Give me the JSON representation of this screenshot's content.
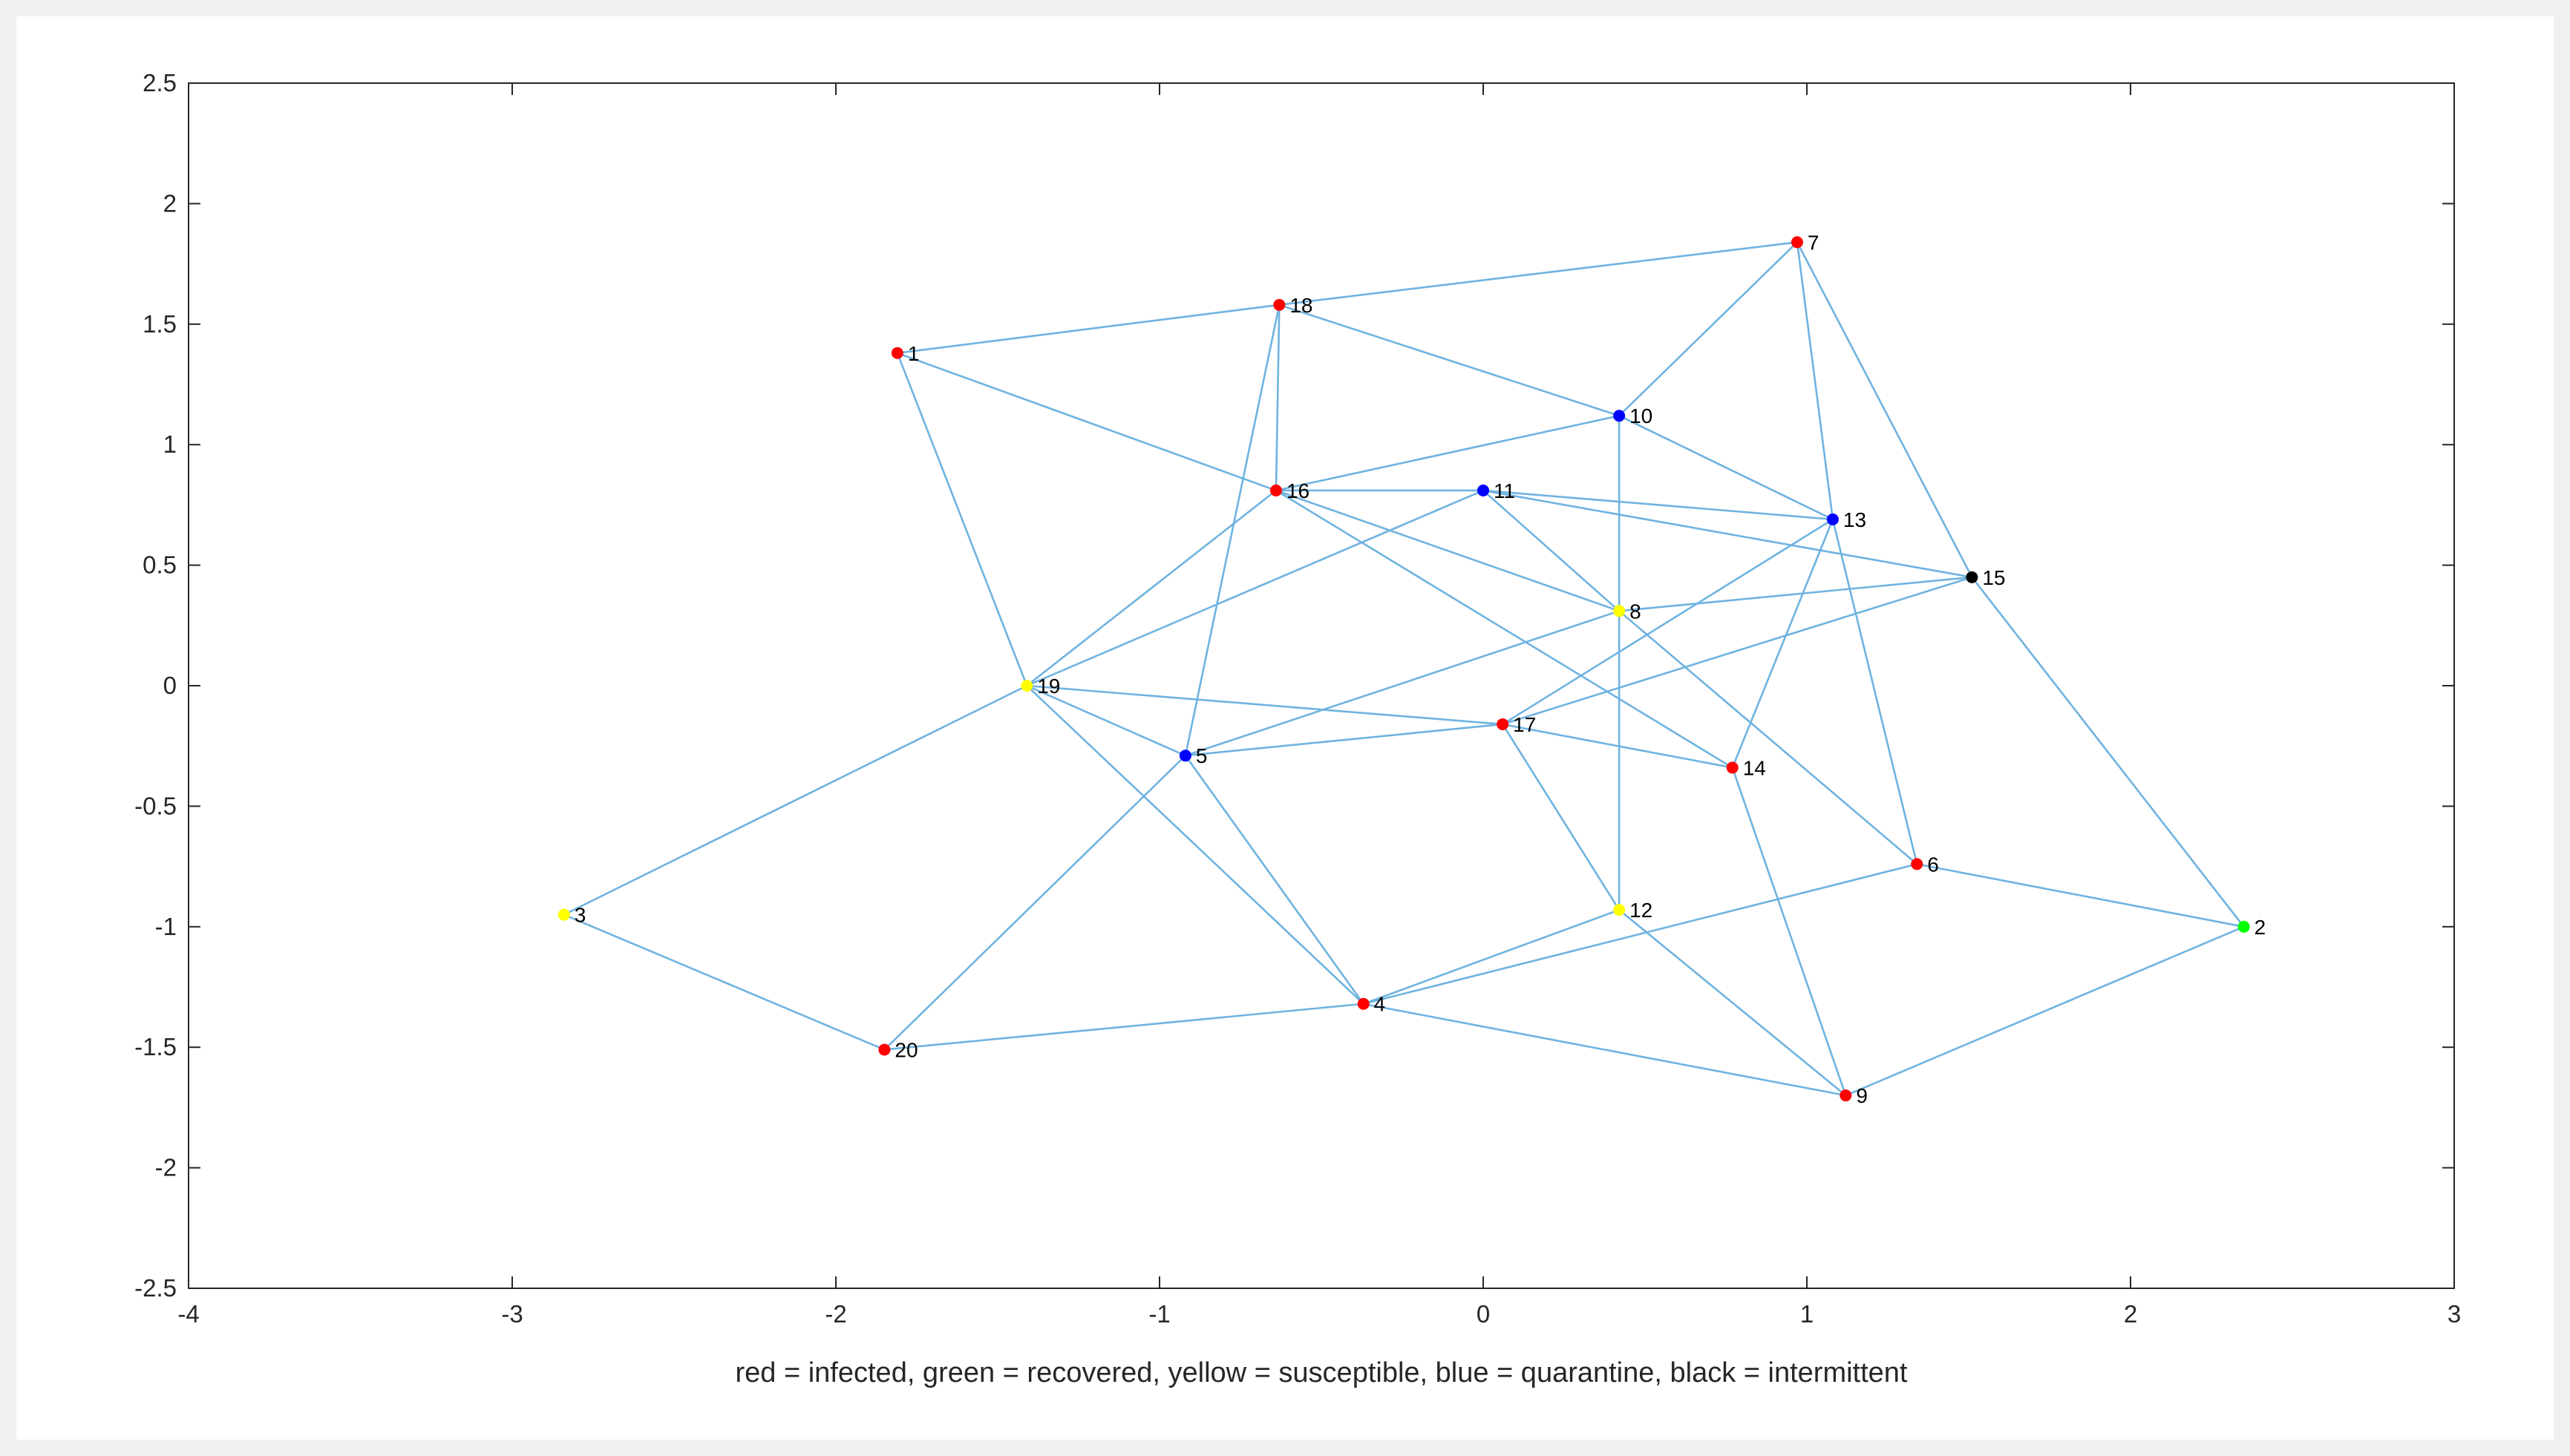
{
  "chart_data": {
    "type": "scatter",
    "subtype": "network-graph",
    "xlabel": "red = infected, green = recovered, yellow = susceptible, blue = quarantine, black = intermittent",
    "xlim": [
      -4,
      3
    ],
    "ylim": [
      -2.5,
      2.5
    ],
    "xticks": [
      -4,
      -3,
      -2,
      -1,
      0,
      1,
      2,
      3
    ],
    "xtick_labels": [
      "-4",
      "-3",
      "-2",
      "-1",
      "0",
      "1",
      "2",
      "3"
    ],
    "yticks": [
      -2.5,
      -2,
      -1.5,
      -1,
      -0.5,
      0,
      0.5,
      1,
      1.5,
      2,
      2.5
    ],
    "ytick_labels": [
      "-2.5",
      "-2",
      "-1.5",
      "-1",
      "-0.5",
      "0",
      "0.5",
      "1",
      "1.5",
      "2",
      "2.5"
    ],
    "grid": false,
    "colors": {
      "infected": "#ff0000",
      "recovered": "#00ff00",
      "susceptible": "#ffff00",
      "quarantine": "#0000ff",
      "intermittent": "#000000",
      "edge": "#6fb3e0"
    },
    "nodes": [
      {
        "id": "1",
        "x": -1.81,
        "y": 1.38,
        "status": "infected"
      },
      {
        "id": "2",
        "x": 2.35,
        "y": -1.0,
        "status": "recovered"
      },
      {
        "id": "3",
        "x": -2.84,
        "y": -0.95,
        "status": "susceptible"
      },
      {
        "id": "4",
        "x": -0.37,
        "y": -1.32,
        "status": "infected"
      },
      {
        "id": "5",
        "x": -0.92,
        "y": -0.29,
        "status": "quarantine"
      },
      {
        "id": "6",
        "x": 1.34,
        "y": -0.74,
        "status": "infected"
      },
      {
        "id": "7",
        "x": 0.97,
        "y": 1.84,
        "status": "infected"
      },
      {
        "id": "8",
        "x": 0.42,
        "y": 0.31,
        "status": "susceptible"
      },
      {
        "id": "9",
        "x": 1.12,
        "y": -1.7,
        "status": "infected"
      },
      {
        "id": "10",
        "x": 0.42,
        "y": 1.12,
        "status": "quarantine"
      },
      {
        "id": "11",
        "x": 0.0,
        "y": 0.81,
        "status": "quarantine"
      },
      {
        "id": "12",
        "x": 0.42,
        "y": -0.93,
        "status": "susceptible"
      },
      {
        "id": "13",
        "x": 1.08,
        "y": 0.69,
        "status": "quarantine"
      },
      {
        "id": "14",
        "x": 0.77,
        "y": -0.34,
        "status": "infected"
      },
      {
        "id": "15",
        "x": 1.51,
        "y": 0.45,
        "status": "intermittent"
      },
      {
        "id": "16",
        "x": -0.64,
        "y": 0.81,
        "status": "infected"
      },
      {
        "id": "17",
        "x": 0.06,
        "y": -0.16,
        "status": "infected"
      },
      {
        "id": "18",
        "x": -0.63,
        "y": 1.58,
        "status": "infected"
      },
      {
        "id": "19",
        "x": -1.41,
        "y": 0.0,
        "status": "susceptible"
      },
      {
        "id": "20",
        "x": -1.85,
        "y": -1.51,
        "status": "infected"
      }
    ],
    "edges": [
      [
        "1",
        "18"
      ],
      [
        "1",
        "16"
      ],
      [
        "1",
        "19"
      ],
      [
        "18",
        "7"
      ],
      [
        "18",
        "10"
      ],
      [
        "18",
        "16"
      ],
      [
        "18",
        "5"
      ],
      [
        "7",
        "10"
      ],
      [
        "7",
        "13"
      ],
      [
        "7",
        "15"
      ],
      [
        "10",
        "16"
      ],
      [
        "10",
        "13"
      ],
      [
        "10",
        "8"
      ],
      [
        "16",
        "11"
      ],
      [
        "16",
        "8"
      ],
      [
        "16",
        "14"
      ],
      [
        "16",
        "19"
      ],
      [
        "11",
        "13"
      ],
      [
        "11",
        "15"
      ],
      [
        "11",
        "8"
      ],
      [
        "11",
        "19"
      ],
      [
        "13",
        "17"
      ],
      [
        "13",
        "14"
      ],
      [
        "13",
        "6"
      ],
      [
        "15",
        "17"
      ],
      [
        "15",
        "8"
      ],
      [
        "15",
        "2"
      ],
      [
        "8",
        "5"
      ],
      [
        "8",
        "12"
      ],
      [
        "8",
        "6"
      ],
      [
        "19",
        "17"
      ],
      [
        "19",
        "5"
      ],
      [
        "19",
        "3"
      ],
      [
        "19",
        "4"
      ],
      [
        "5",
        "17"
      ],
      [
        "5",
        "4"
      ],
      [
        "5",
        "20"
      ],
      [
        "17",
        "14"
      ],
      [
        "17",
        "12"
      ],
      [
        "14",
        "9"
      ],
      [
        "6",
        "2"
      ],
      [
        "6",
        "4"
      ],
      [
        "12",
        "4"
      ],
      [
        "12",
        "9"
      ],
      [
        "3",
        "20"
      ],
      [
        "20",
        "4"
      ],
      [
        "4",
        "9"
      ],
      [
        "9",
        "2"
      ]
    ]
  }
}
